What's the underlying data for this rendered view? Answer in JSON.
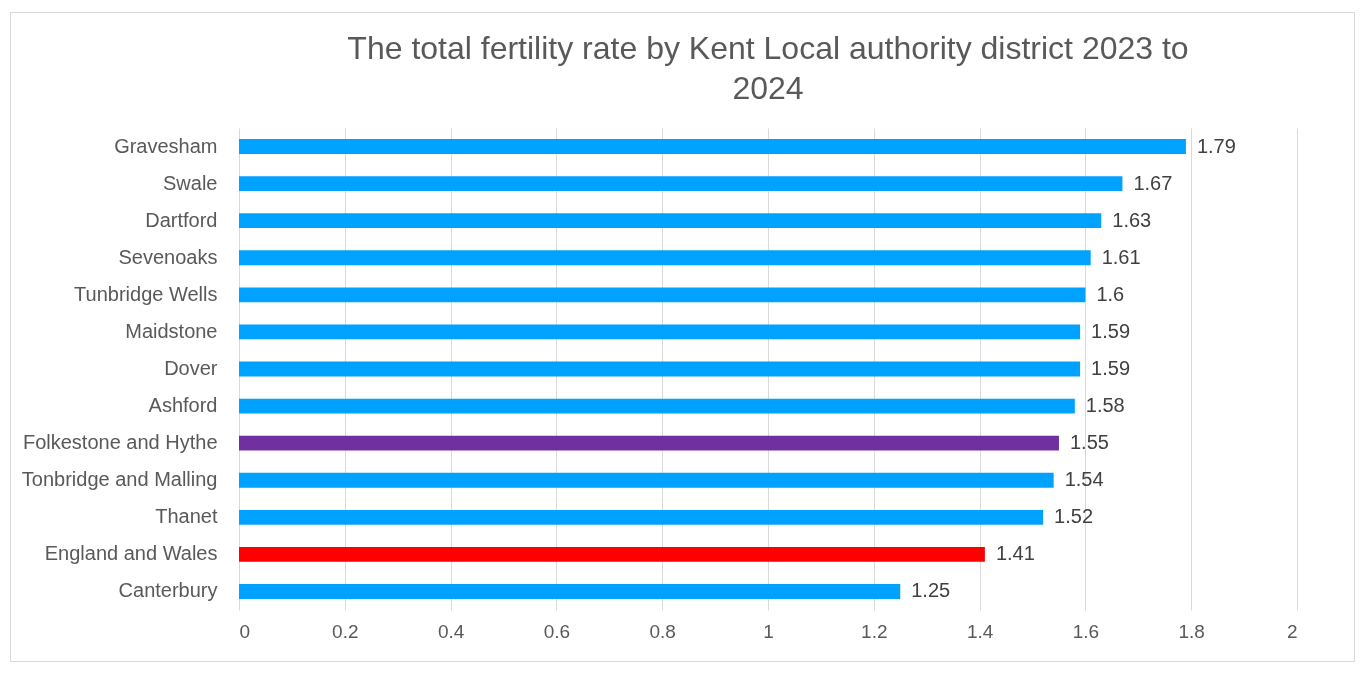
{
  "chart_data": {
    "type": "bar",
    "orientation": "horizontal",
    "title": "The total fertility rate by Kent Local authority district 2023 to 2024",
    "categories": [
      "Gravesham",
      "Swale",
      "Dartford",
      "Sevenoaks",
      "Tunbridge Wells",
      "Maidstone",
      "Dover",
      "Ashford",
      "Folkestone and Hythe",
      "Tonbridge and Malling",
      "Thanet",
      "England and Wales",
      "Canterbury"
    ],
    "values": [
      1.79,
      1.67,
      1.63,
      1.61,
      1.6,
      1.59,
      1.59,
      1.58,
      1.55,
      1.54,
      1.52,
      1.41,
      1.25
    ],
    "colors": [
      "#00a2ff",
      "#00a2ff",
      "#00a2ff",
      "#00a2ff",
      "#00a2ff",
      "#00a2ff",
      "#00a2ff",
      "#00a2ff",
      "#7030a0",
      "#00a2ff",
      "#00a2ff",
      "#ff0000",
      "#00a2ff"
    ],
    "xlim": [
      0,
      2
    ],
    "xticks": [
      0,
      0.2,
      0.4,
      0.6,
      0.8,
      1,
      1.2,
      1.4,
      1.6,
      1.8,
      2
    ],
    "grid": "x",
    "data_labels": true,
    "legend": false
  }
}
